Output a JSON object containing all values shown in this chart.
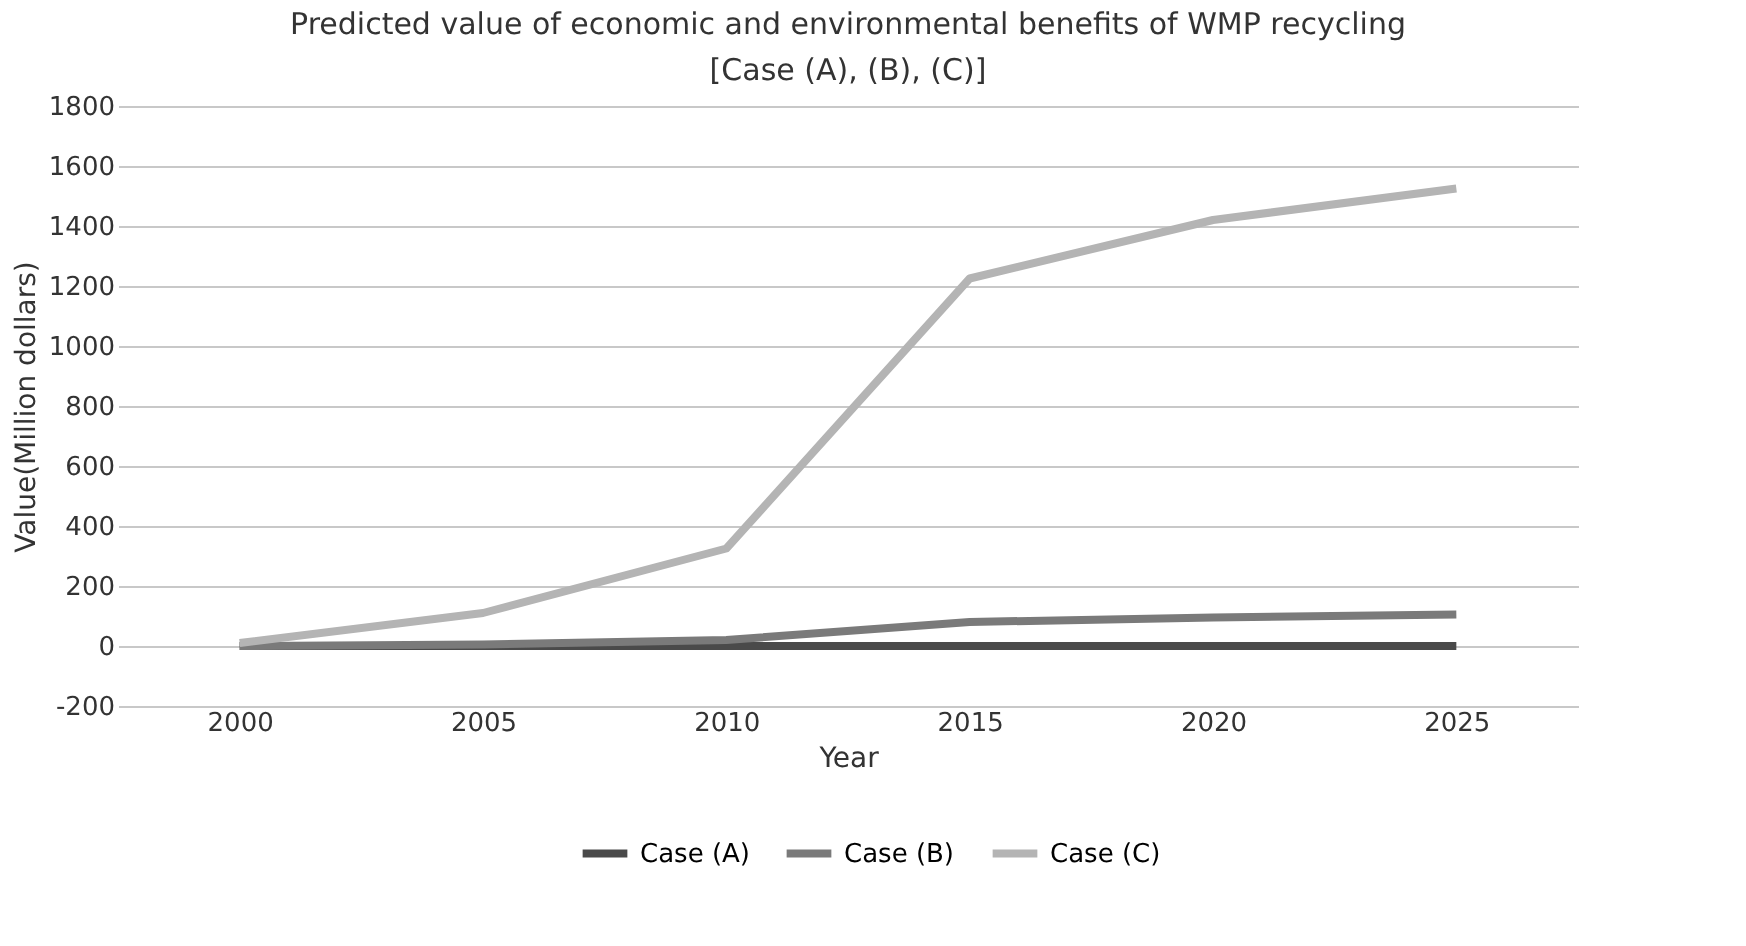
{
  "chart_data": {
    "type": "line",
    "title": "Predicted value of economic and environmental benefits of WMP recycling",
    "subtitle": "[Case (A), (B), (C)]",
    "xlabel": "Year",
    "ylabel": "Value(Million dollars)",
    "categories": [
      "2000",
      "2005",
      "2010",
      "2015",
      "2020",
      "2025"
    ],
    "series": [
      {
        "name": "Case (A)",
        "color": "#4a4a4a",
        "values": [
          0,
          0,
          0,
          0,
          0,
          0
        ]
      },
      {
        "name": "Case (B)",
        "color": "#7a7a7a",
        "values": [
          0,
          5,
          20,
          80,
          95,
          105
        ]
      },
      {
        "name": "Case (C)",
        "color": "#b4b4b4",
        "values": [
          10,
          110,
          325,
          1225,
          1420,
          1525
        ]
      }
    ],
    "ylim": [
      -200,
      1800
    ],
    "yticks": [
      -200,
      0,
      200,
      400,
      600,
      800,
      1000,
      1200,
      1400,
      1600,
      1800
    ],
    "grid": "y",
    "legend": "bottom",
    "marker": "none",
    "line_style": "solid"
  }
}
